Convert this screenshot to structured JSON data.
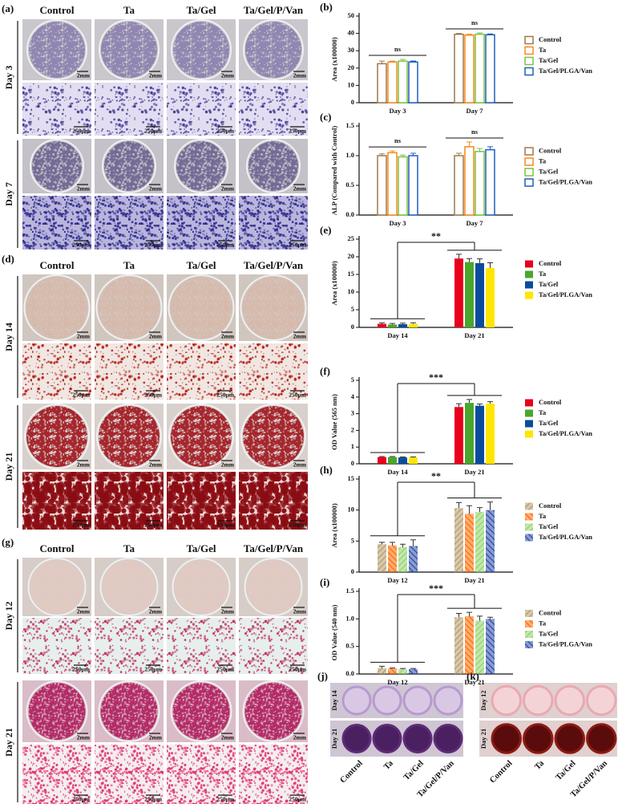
{
  "figure": {
    "panels": [
      {
        "label": "(a)",
        "columns": [
          "Control",
          "Ta",
          "Ta/Gel",
          "Ta/Gel/P/Van"
        ],
        "rows": [
          "Day 3",
          "Day 7"
        ],
        "scale_bars": [
          "2mm",
          "250μm"
        ]
      },
      {
        "label": "(d)",
        "columns": [
          "Control",
          "Ta",
          "Ta/Gel",
          "Ta/Gel/P/Van"
        ],
        "rows": [
          "Day 14",
          "Day 21"
        ],
        "scale_bars": [
          "2mm",
          "250μm"
        ]
      },
      {
        "label": "(g)",
        "columns": [
          "Control",
          "Ta",
          "Ta/Gel",
          "Ta/Gel/P/Van"
        ],
        "rows": [
          "Day 12",
          "Day 21"
        ],
        "scale_bars": [
          "2mm",
          "250μm"
        ]
      },
      {
        "label": "(j)",
        "columns": [
          "Control",
          "Ta",
          "Ta/Gel",
          "Ta/Gel/P/Van"
        ],
        "rows": [
          "Day 14",
          "Day 21"
        ]
      },
      {
        "label": "(k)",
        "columns": [
          "Control",
          "Ta",
          "Ta/Gel",
          "Ta/Gel/P/Van"
        ],
        "rows": [
          "Day 12",
          "Day 21"
        ]
      }
    ]
  },
  "chart_data": [
    {
      "type": "bar",
      "panel": "(b)",
      "ylabel": "Area (x100000)",
      "categories": [
        "Day 3",
        "Day 7"
      ],
      "bar_style": "outline",
      "ylim": [
        0,
        50
      ],
      "yticks": [
        0,
        10,
        20,
        30,
        40,
        50
      ],
      "series": [
        {
          "name": "Control",
          "color": "#a0784a",
          "values": [
            22.5,
            39.5
          ],
          "errors": [
            1.5,
            0.5
          ]
        },
        {
          "name": "Ta",
          "color": "#f58a1f",
          "values": [
            23.5,
            39
          ],
          "errors": [
            0.5,
            0.5
          ]
        },
        {
          "name": "Ta/Gel",
          "color": "#7cc242",
          "values": [
            24,
            39.5
          ],
          "errors": [
            1,
            0.8
          ]
        },
        {
          "name": "Ta/Gel/PLGA/Van",
          "color": "#1f5fbf",
          "values": [
            23.5,
            39.2
          ],
          "errors": [
            0.6,
            0.5
          ]
        }
      ],
      "group_annotations": [
        "ns",
        "ns"
      ]
    },
    {
      "type": "bar",
      "panel": "(c)",
      "ylabel": "ALP (Compared with Control)",
      "categories": [
        "Day 3",
        "Day 7"
      ],
      "bar_style": "outline",
      "ylim": [
        0,
        1.5
      ],
      "yticks": [
        {
          "value": 0,
          "label": "0.0"
        },
        0.5,
        {
          "value": 1,
          "label": "1.0"
        },
        1.5
      ],
      "series": [
        {
          "name": "Control",
          "color": "#a0784a",
          "values": [
            1.0,
            1.0
          ],
          "errors": [
            0.03,
            0.04
          ]
        },
        {
          "name": "Ta",
          "color": "#f58a1f",
          "values": [
            1.05,
            1.15
          ],
          "errors": [
            0.03,
            0.08
          ]
        },
        {
          "name": "Ta/Gel",
          "color": "#7cc242",
          "values": [
            0.98,
            1.07
          ],
          "errors": [
            0.03,
            0.05
          ]
        },
        {
          "name": "Ta/Gel/PLGA/Van",
          "color": "#1f5fbf",
          "values": [
            1.0,
            1.1
          ],
          "errors": [
            0.04,
            0.05
          ]
        }
      ],
      "group_annotations": [
        "ns",
        "ns"
      ]
    },
    {
      "type": "bar",
      "panel": "(e)",
      "ylabel": "Area (x100000)",
      "categories": [
        "Day 14",
        "Day 21"
      ],
      "bar_style": "solid",
      "ylim": [
        0,
        25
      ],
      "yticks": [
        0,
        5,
        10,
        15,
        20,
        25
      ],
      "series": [
        {
          "name": "Control",
          "color": "#e8001c",
          "values": [
            1.0,
            19.5
          ],
          "errors": [
            0.3,
            1.2
          ]
        },
        {
          "name": "Ta",
          "color": "#4aa72a",
          "values": [
            0.8,
            18.5
          ],
          "errors": [
            0.3,
            1.0
          ]
        },
        {
          "name": "Ta/Gel",
          "color": "#0a4c9c",
          "values": [
            0.9,
            18.2
          ],
          "errors": [
            0.3,
            1.2
          ]
        },
        {
          "name": "Ta/Gel/PLGA/Van",
          "color": "#ffe600",
          "values": [
            1.0,
            16.8
          ],
          "errors": [
            0.3,
            1.5
          ]
        }
      ],
      "comparison_annotation": "**"
    },
    {
      "type": "bar",
      "panel": "(f)",
      "ylabel": "OD Value (565 nm)",
      "categories": [
        "Day 14",
        "Day 21"
      ],
      "bar_style": "solid",
      "ylim": [
        0,
        5
      ],
      "yticks": [
        0,
        1,
        2,
        3,
        4,
        5
      ],
      "series": [
        {
          "name": "Control",
          "color": "#e8001c",
          "values": [
            0.4,
            3.4
          ],
          "errors": [
            0.03,
            0.2
          ]
        },
        {
          "name": "Ta",
          "color": "#4aa72a",
          "values": [
            0.4,
            3.65
          ],
          "errors": [
            0.03,
            0.2
          ]
        },
        {
          "name": "Ta/Gel",
          "color": "#0a4c9c",
          "values": [
            0.38,
            3.48
          ],
          "errors": [
            0.03,
            0.1
          ]
        },
        {
          "name": "Ta/Gel/PLGA/Van",
          "color": "#ffe600",
          "values": [
            0.38,
            3.6
          ],
          "errors": [
            0.03,
            0.12
          ]
        }
      ],
      "comparison_annotation": "***"
    },
    {
      "type": "bar",
      "panel": "(h)",
      "ylabel": "Area (x100000)",
      "categories": [
        "Day 12",
        "Day 21"
      ],
      "bar_style": "hatched",
      "ylim": [
        0,
        15
      ],
      "yticks": [
        0,
        5,
        10,
        15
      ],
      "series": [
        {
          "name": "Control",
          "color": "#b59a6a",
          "values": [
            4.5,
            10.3
          ],
          "errors": [
            0.3,
            0.9
          ]
        },
        {
          "name": "Ta",
          "color": "#ff6a00",
          "values": [
            4.3,
            9.4
          ],
          "errors": [
            0.5,
            1.3
          ]
        },
        {
          "name": "Ta/Gel",
          "color": "#8fd36b",
          "values": [
            4.0,
            9.7
          ],
          "errors": [
            0.5,
            0.7
          ]
        },
        {
          "name": "Ta/Gel/PLGA/Van",
          "color": "#2a4aa8",
          "values": [
            4.2,
            10.0
          ],
          "errors": [
            1.0,
            1.3
          ]
        }
      ],
      "comparison_annotation": "**"
    },
    {
      "type": "bar",
      "panel": "(i)",
      "ylabel": "OD Value (540 nm)",
      "categories": [
        "Day 12",
        "Day 21"
      ],
      "bar_style": "hatched",
      "ylim": [
        0,
        1.5
      ],
      "yticks": [
        {
          "value": 0,
          "label": "0.0"
        },
        0.5,
        {
          "value": 1,
          "label": "1.0"
        },
        1.5
      ],
      "series": [
        {
          "name": "Control",
          "color": "#b59a6a",
          "values": [
            0.11,
            1.03
          ],
          "errors": [
            0.03,
            0.07
          ]
        },
        {
          "name": "Ta",
          "color": "#ff6a00",
          "values": [
            0.1,
            1.05
          ],
          "errors": [
            0.01,
            0.07
          ]
        },
        {
          "name": "Ta/Gel",
          "color": "#8fd36b",
          "values": [
            0.09,
            0.97
          ],
          "errors": [
            0.01,
            0.08
          ]
        },
        {
          "name": "Ta/Gel/PLGA/Van",
          "color": "#2a4aa8",
          "values": [
            0.09,
            1.0
          ],
          "errors": [
            0.01,
            0.03
          ]
        }
      ],
      "comparison_annotation": "***"
    }
  ]
}
